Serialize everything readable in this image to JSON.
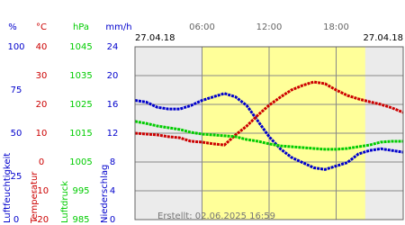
{
  "chart_data": {
    "type": "line",
    "dates": [
      "27.04.18",
      "27.04.18"
    ],
    "created": "Erstellt: 02.06.2025 16:59",
    "xlim": [
      0,
      24
    ],
    "xticks": [
      {
        "value": 6,
        "label": "06:00"
      },
      {
        "value": 12,
        "label": "12:00"
      },
      {
        "value": 18,
        "label": "18:00"
      }
    ],
    "daylight": [
      6,
      20.6
    ],
    "daylight_color": "#ffff99",
    "background": "#ebebeb",
    "grid": true,
    "axes": [
      {
        "name": "Luftfeuchtigkeit",
        "unit": "%",
        "color": "#0000cc",
        "lim": [
          0,
          100
        ],
        "ticks": [
          0,
          25,
          50,
          75,
          100
        ]
      },
      {
        "name": "Temperatur",
        "unit": "°C",
        "color": "#cc0000",
        "lim": [
          -20,
          40
        ],
        "ticks": [
          -20,
          -10,
          0,
          10,
          20,
          30,
          40
        ]
      },
      {
        "name": "Luftdruck",
        "unit": "hPa",
        "color": "#00cc00",
        "lim": [
          985,
          1045
        ],
        "ticks": [
          985,
          995,
          1005,
          1015,
          1025,
          1035,
          1045
        ]
      },
      {
        "name": "Niederschlag",
        "unit": "mm/h",
        "color": "#0000cc",
        "lim": [
          0,
          24
        ],
        "ticks": [
          0,
          4,
          8,
          12,
          16,
          20,
          24
        ]
      }
    ],
    "x": [
      0,
      1,
      2,
      3,
      4,
      5,
      6,
      7,
      8,
      9,
      10,
      11,
      12,
      13,
      14,
      15,
      16,
      17,
      18,
      19,
      20,
      21,
      22,
      23,
      24
    ],
    "series": [
      {
        "name": "Luftfeuchtigkeit",
        "axis": 0,
        "color": "#0000cc",
        "values": [
          69,
          68,
          65,
          64,
          64,
          66,
          69,
          71,
          73,
          71,
          66,
          57,
          48,
          41,
          36,
          33,
          30,
          29,
          31,
          33,
          38,
          40,
          41,
          40,
          39
        ]
      },
      {
        "name": "Temperatur",
        "axis": 1,
        "color": "#cc0000",
        "values": [
          10,
          9.7,
          9.4,
          8.8,
          8.4,
          7.2,
          6.9,
          6.3,
          5.9,
          9.4,
          12.5,
          16.3,
          19.7,
          22.5,
          25,
          26.6,
          27.8,
          27.2,
          25,
          23.1,
          21.9,
          20.9,
          20,
          18.8,
          17.2
        ]
      },
      {
        "name": "Luftdruck",
        "axis": 2,
        "color": "#00cc00",
        "values": [
          1019.1,
          1018.4,
          1017.5,
          1016.9,
          1016.3,
          1015.3,
          1014.7,
          1014.4,
          1014.1,
          1013.8,
          1012.8,
          1012.2,
          1011.3,
          1010.6,
          1010.3,
          1010,
          1009.7,
          1009.4,
          1009.4,
          1009.7,
          1010.3,
          1010.9,
          1011.9,
          1012.2,
          1012.2
        ]
      }
    ]
  }
}
